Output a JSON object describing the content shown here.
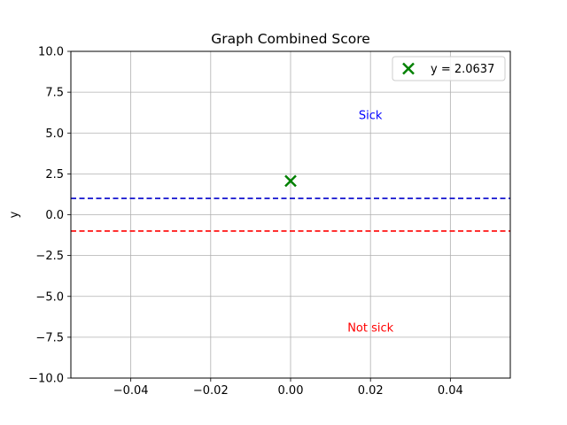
{
  "chart_data": {
    "type": "scatter",
    "title": "Graph Combined Score",
    "xlabel": "",
    "ylabel": "y",
    "xlim": [
      -0.055,
      0.055
    ],
    "ylim": [
      -10,
      10
    ],
    "xticks": [
      -0.04,
      -0.02,
      0.0,
      0.02,
      0.04
    ],
    "xtick_labels": [
      "−0.04",
      "−0.02",
      "0.00",
      "0.02",
      "0.04"
    ],
    "yticks": [
      -10,
      -7.5,
      -5,
      -2.5,
      0,
      2.5,
      5,
      7.5,
      10
    ],
    "ytick_labels": [
      "−10.0",
      "−7.5",
      "−5.0",
      "−2.5",
      "0.0",
      "2.5",
      "5.0",
      "7.5",
      "10.0"
    ],
    "grid": true,
    "legend_position": "top-right",
    "series": [
      {
        "name": "y = 2.0637",
        "marker": "x",
        "color": "#008000",
        "points": [
          {
            "x": 0.0,
            "y": 2.0637
          }
        ]
      }
    ],
    "hlines": [
      {
        "y": 1,
        "color": "#0000cc",
        "style": "dashed"
      },
      {
        "y": -1,
        "color": "#ff0000",
        "style": "dashed"
      }
    ],
    "annotations": [
      {
        "text": "Sick",
        "x": 0.02,
        "y": 6.1,
        "color": "#0000ff"
      },
      {
        "text": "Not sick",
        "x": 0.02,
        "y": -6.9,
        "color": "#ff0000"
      }
    ]
  }
}
